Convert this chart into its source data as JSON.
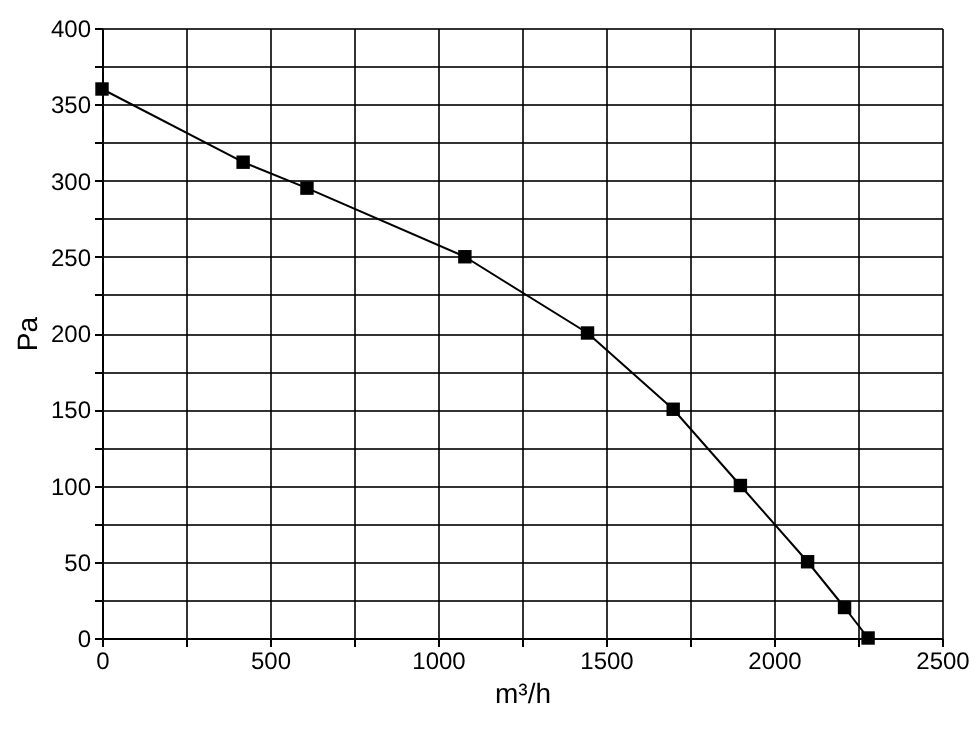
{
  "chart_data": {
    "type": "line",
    "xlabel": "m³/h",
    "ylabel": "Pa",
    "x": [
      0,
      420,
      610,
      1080,
      1445,
      1700,
      1900,
      2100,
      2210,
      2280
    ],
    "series": [
      {
        "color": "#000000",
        "values": [
          360,
          312,
          295,
          250,
          200,
          150,
          100,
          50,
          20,
          0
        ]
      }
    ],
    "xlim": [
      0,
      2500
    ],
    "ylim": [
      0,
      400
    ],
    "xticks": [
      0,
      {
        "value": 250,
        "label": null
      },
      500,
      {
        "value": 750,
        "label": null
      },
      1000,
      {
        "value": 1250,
        "label": null
      },
      1500,
      {
        "value": 1750,
        "label": null
      },
      2000,
      {
        "value": 2250,
        "label": null
      },
      2500
    ],
    "yticks": [
      0,
      {
        "value": 25,
        "label": null
      },
      50,
      {
        "value": 75,
        "label": null
      },
      100,
      {
        "value": 125,
        "label": null
      },
      150,
      {
        "value": 175,
        "label": null
      },
      200,
      {
        "value": 225,
        "label": null
      },
      250,
      {
        "value": 275,
        "label": null
      },
      300,
      {
        "value": 325,
        "label": null
      },
      350,
      {
        "value": 375,
        "label": null
      },
      400
    ],
    "grid": true,
    "marker": "square",
    "line_style": "solid"
  }
}
